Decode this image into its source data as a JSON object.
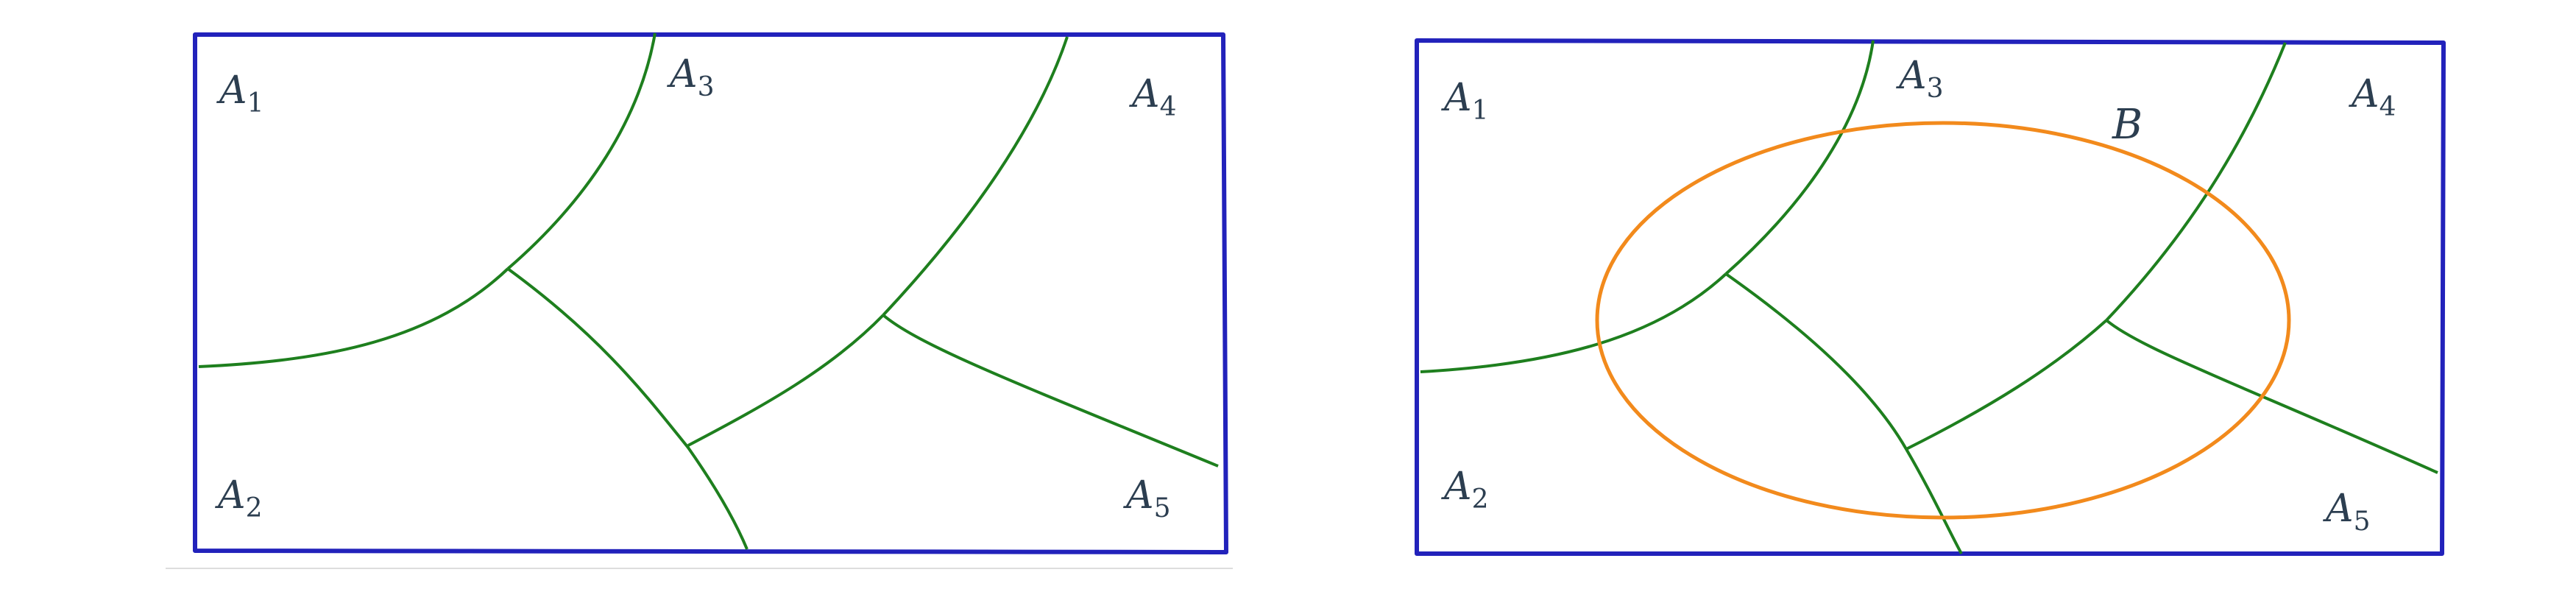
{
  "colors": {
    "frame": "#2222bb",
    "partition": "#1e7f1e",
    "event": "#f28a1c",
    "label": "#2c3e50",
    "baseline": "#dddddd"
  },
  "panels": [
    {
      "regions": [
        {
          "base": "A",
          "sub": "1"
        },
        {
          "base": "A",
          "sub": "2"
        },
        {
          "base": "A",
          "sub": "3"
        },
        {
          "base": "A",
          "sub": "4"
        },
        {
          "base": "A",
          "sub": "5"
        }
      ]
    },
    {
      "regions": [
        {
          "base": "A",
          "sub": "1"
        },
        {
          "base": "A",
          "sub": "2"
        },
        {
          "base": "A",
          "sub": "3"
        },
        {
          "base": "A",
          "sub": "4"
        },
        {
          "base": "A",
          "sub": "5"
        }
      ],
      "event": {
        "label": "B"
      }
    }
  ]
}
